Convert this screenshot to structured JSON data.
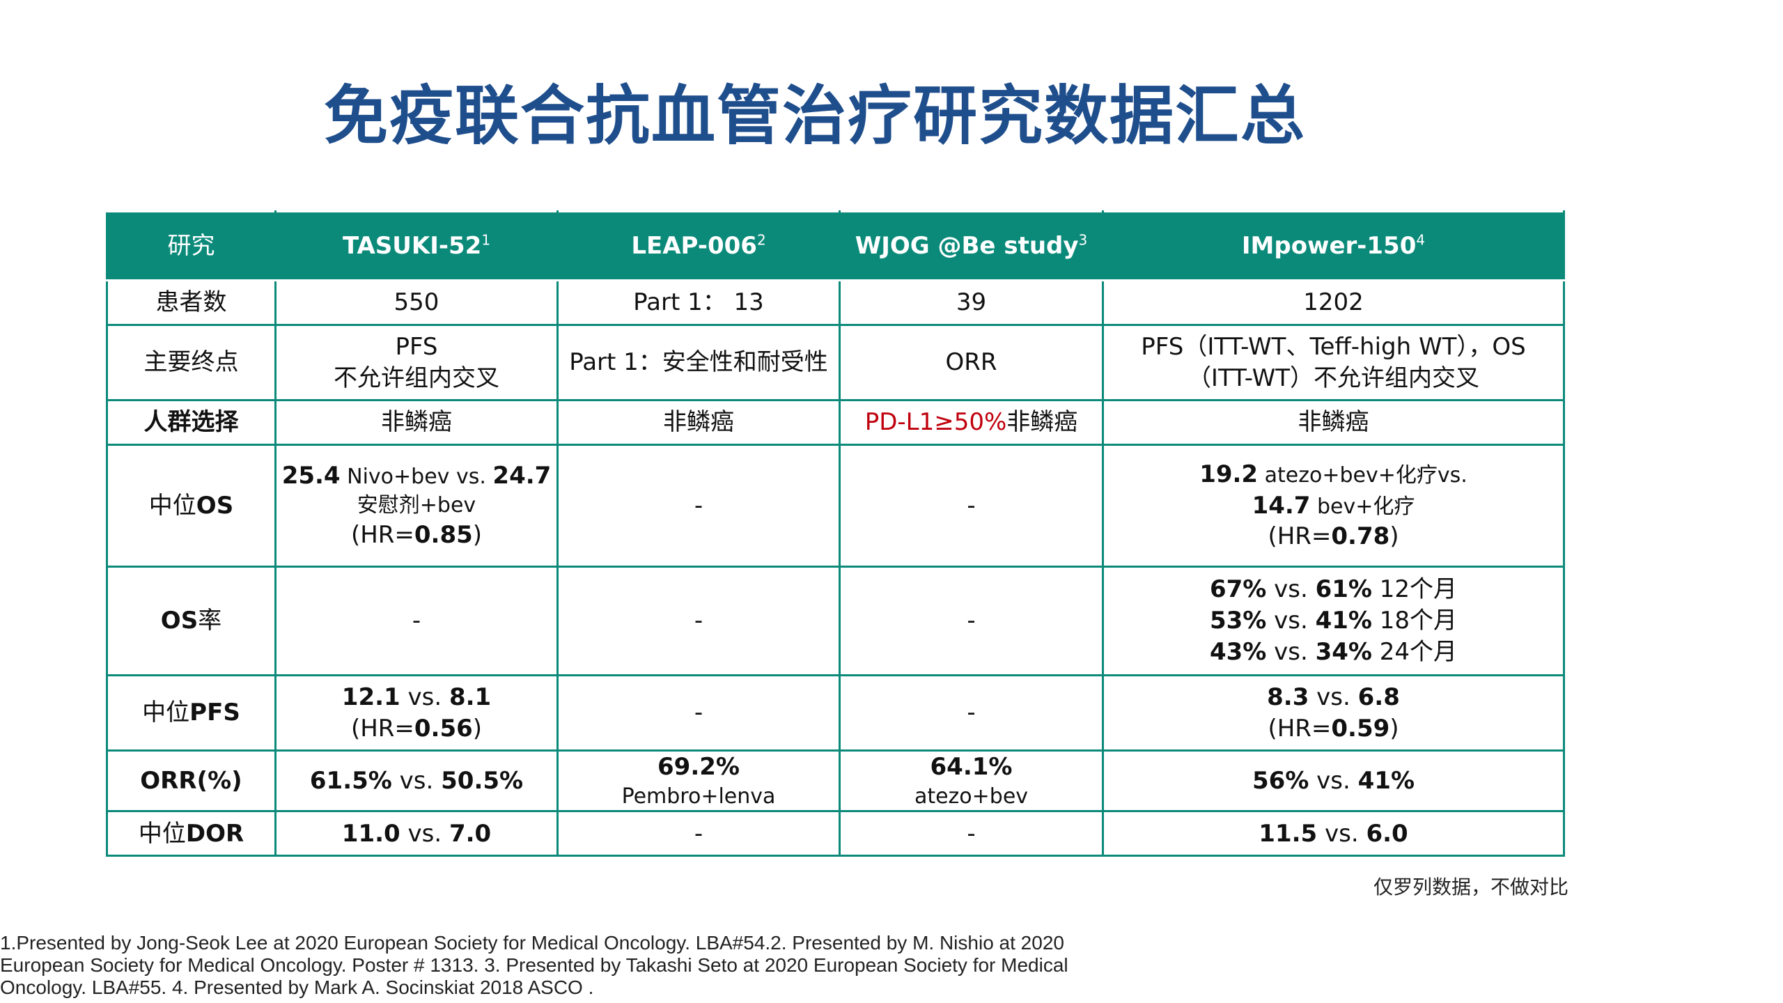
{
  "title": "免疫联合抗血管治疗研究数据汇总",
  "table": {
    "header": {
      "col0": "研究",
      "col1": "TASUKI-52",
      "col1_sup": "1",
      "col2": "LEAP-006",
      "col2_sup": "2",
      "col3": "WJOG @Be study",
      "col3_sup": "3",
      "col4": "IMpower-150",
      "col4_sup": "4"
    },
    "patients": {
      "label": "患者数",
      "c1": "550",
      "c2": "Part 1： 13",
      "c3": "39",
      "c4": "1202"
    },
    "endpoint": {
      "label": "主要终点",
      "c1_line1": "PFS",
      "c1_line2": "不允许组内交叉",
      "c2": "Part 1：安全性和耐受性",
      "c3": "ORR",
      "c4_line1": "PFS（ITT-WT、Teff-high WT），OS",
      "c4_line2": "（ITT-WT）不允许组内交叉"
    },
    "population": {
      "label": "人群选择",
      "c1": "非鳞癌",
      "c2": "非鳞癌",
      "c3_red": "PD-L1≥50%",
      "c3_rest": "非鳞癌",
      "c4": "非鳞癌"
    },
    "median_os": {
      "label_cn": "中位",
      "label_en": "OS",
      "c1_v1": "25.4",
      "c1_t1": " Nivo+bev vs. ",
      "c1_v2": "24.7",
      "c1_t2": "安慰剂+bev",
      "c1_hr_pre": "(HR=",
      "c1_hr": "0.85",
      "c1_hr_post": ")",
      "c2": "-",
      "c3": "-",
      "c4_v1": "19.2",
      "c4_t1": " atezo+bev+化疗vs.",
      "c4_v2": "14.7",
      "c4_t2": " bev+化疗",
      "c4_hr_pre": "(HR=",
      "c4_hr": "0.78",
      "c4_hr_post": ")"
    },
    "os_rate": {
      "label_en": "OS",
      "label_cn": "率",
      "c1": "-",
      "c2": "-",
      "c3": "-",
      "c4_rows": [
        {
          "a": "67%",
          "mid": " vs. ",
          "b": "61%",
          "tail": " 12个月"
        },
        {
          "a": "53%",
          "mid": " vs. ",
          "b": "41%",
          "tail": " 18个月"
        },
        {
          "a": "43%",
          "mid": " vs. ",
          "b": "34%",
          "tail": " 24个月"
        }
      ]
    },
    "median_pfs": {
      "label_cn": "中位",
      "label_en": "PFS",
      "c1_a": "12.1",
      "c1_mid": " vs. ",
      "c1_b": "8.1",
      "c1_hr_pre": " (HR=",
      "c1_hr": "0.56",
      "c1_hr_post": ")",
      "c2": "-",
      "c3": "-",
      "c4_a": "8.3",
      "c4_mid": " vs. ",
      "c4_b": "6.8",
      "c4_hr_pre": "(HR=",
      "c4_hr": "0.59",
      "c4_hr_post": ")"
    },
    "orr": {
      "label": "ORR(%)",
      "c1_a": "61.5%",
      "c1_mid": " vs. ",
      "c1_b": "50.5%",
      "c2_v": "69.2%",
      "c2_t": "Pembro+lenva",
      "c3_v": "64.1%",
      "c3_t": "atezo+bev",
      "c4_a": "56%",
      "c4_mid": " vs. ",
      "c4_b": "41%"
    },
    "median_dor": {
      "label_cn": "中位",
      "label_en": "DOR",
      "c1_a": "11.0",
      "c1_mid": " vs. ",
      "c1_b": "7.0",
      "c2": "-",
      "c3": "-",
      "c4_a": "11.5",
      "c4_mid": " vs. ",
      "c4_b": "6.0"
    }
  },
  "note": "仅罗列数据，不做对比",
  "references": "1.Presented by Jong-Seok Lee at 2020 European Society for Medical Oncology. LBA#54.2. Presented by M. Nishio at 2020 European Society for Medical Oncology. Poster # 1313. 3. Presented by Takashi Seto at 2020 European Society for Medical Oncology. LBA#55. 4. Presented by Mark A. Socinskiat 2018 ASCO .",
  "colors": {
    "title": "#1f4e8c",
    "teal": "#0b8a7a",
    "highlight_red": "#c0000c"
  }
}
